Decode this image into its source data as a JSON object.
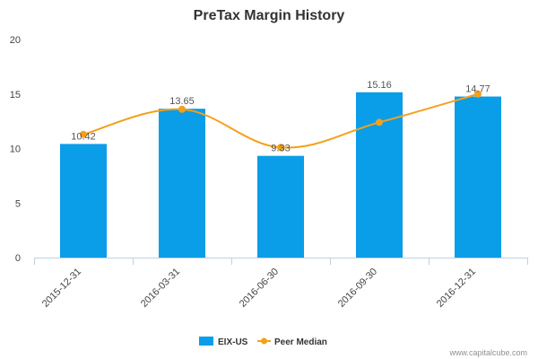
{
  "chart_data": {
    "type": "bar",
    "title": "PreTax Margin History",
    "categories": [
      "2015-12-31",
      "2016-03-31",
      "2016-06-30",
      "2016-09-30",
      "2016-12-31"
    ],
    "series": [
      {
        "name": "EIX-US",
        "type": "bar",
        "values": [
          10.42,
          13.65,
          9.33,
          15.16,
          14.77
        ],
        "labels": [
          "10.42",
          "13.65",
          "9.33",
          "15.16",
          "14.77"
        ],
        "color": "#0a9de8"
      },
      {
        "name": "Peer Median",
        "type": "line",
        "values": [
          11.3,
          13.6,
          10.1,
          12.4,
          15.0
        ],
        "color": "#f5a01a"
      }
    ],
    "ylim": [
      0,
      20
    ],
    "yticks": [
      "0",
      "5",
      "10",
      "15",
      "20"
    ],
    "grid": false,
    "legend_position": "bottom"
  },
  "credit": "www.capitalcube.com"
}
